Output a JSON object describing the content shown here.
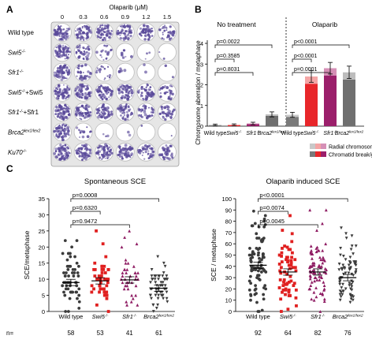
{
  "panels": {
    "A": "A",
    "B": "B",
    "C": "C"
  },
  "panel_a": {
    "dose_title": "Olaparib (μM)",
    "doses": [
      "0",
      "0.3",
      "0.6",
      "0.9",
      "1.2",
      "1.5"
    ],
    "rows": [
      {
        "label": "Wild type",
        "wells": [
          1.0,
          0.95,
          0.9,
          0.85,
          0.75,
          0.55
        ]
      },
      {
        "label": "Swi5⁻/⁻",
        "wells": [
          1.0,
          0.55,
          0.3,
          0.1,
          0.05,
          0.03
        ]
      },
      {
        "label": "Sfr1⁻/⁻",
        "wells": [
          1.0,
          0.5,
          0.25,
          0.08,
          0.04,
          0.03
        ]
      },
      {
        "label": "Swi5⁻/⁻+Swi5",
        "wells": [
          1.0,
          0.95,
          0.9,
          0.8,
          0.7,
          0.5
        ]
      },
      {
        "label": "Sfr1⁻/⁻+Sfr1",
        "wells": [
          1.0,
          0.95,
          0.85,
          0.75,
          0.65,
          0.5
        ]
      },
      {
        "label": "Brca2lex1/lex2",
        "wells": [
          1.0,
          0.2,
          0.05,
          0.03,
          0.02,
          0.02
        ]
      },
      {
        "label": "Ku70⁻/⁻",
        "wells": [
          1.0,
          0.95,
          0.9,
          0.8,
          0.7,
          0.6
        ]
      }
    ]
  },
  "chart_data": [
    {
      "id": "B",
      "type": "bar",
      "ylabel": "Chromosome aberration / metaphase",
      "ylim": [
        0,
        4
      ],
      "yticks": [
        "0",
        "1",
        "2",
        "3",
        "4"
      ],
      "group_titles": [
        "No treatment",
        "Olaparib"
      ],
      "categories": [
        "Wild type",
        "Swi5⁻/⁻",
        "Sfr1⁻/⁻",
        "Brca2lex1/lex2"
      ],
      "groups": [
        {
          "name": "No treatment",
          "break_gap": [
            0.05,
            0.05,
            0.1,
            0.5
          ],
          "radial": [
            0.01,
            0.02,
            0.03,
            0.07
          ],
          "err": [
            0.04,
            0.04,
            0.06,
            0.12
          ]
        },
        {
          "name": "Olaparib",
          "break_gap": [
            0.45,
            2.05,
            2.45,
            2.25
          ],
          "radial": [
            0.1,
            0.35,
            0.35,
            0.35
          ],
          "err": [
            0.12,
            0.28,
            0.28,
            0.3
          ]
        }
      ],
      "legend": [
        "Radial chromosome",
        "Chromatid break/gap"
      ],
      "pvalues_left": [
        "p=0.0022",
        "p=0.3585",
        "p=0.8031"
      ],
      "pvalues_right": [
        "p<0.0001",
        "p<0.0001",
        "p=0.0001"
      ]
    },
    {
      "id": "C-left",
      "type": "scatter",
      "title": "Spontaneous SCE",
      "ylabel": "SCE/metaphase",
      "ylim": [
        0,
        35
      ],
      "yticks": [
        "0",
        "5",
        "10",
        "15",
        "20",
        "25",
        "30",
        "35"
      ],
      "categories": [
        "Wild type",
        "Swi5⁻/⁻",
        "Sfr1⁻/⁻",
        "Brca2lex1/lex2"
      ],
      "means": [
        9.0,
        9.5,
        9.8,
        7.2
      ],
      "n": [
        "58",
        "53",
        "41",
        "61"
      ],
      "n_label": "n=",
      "pvalues": [
        "p=0.0008",
        "p=0.6320",
        "p=0.9472"
      ]
    },
    {
      "id": "C-right",
      "type": "scatter",
      "title": "Olaparib induced SCE",
      "ylabel": "SCE / metaphase",
      "ylim": [
        0,
        100
      ],
      "yticks": [
        "0",
        "10",
        "20",
        "30",
        "40",
        "50",
        "60",
        "70",
        "80",
        "90",
        "100"
      ],
      "categories": [
        "Wild type",
        "Swi5⁻/⁻",
        "Sfr1⁻/⁻",
        "Brca2lex1/lex2"
      ],
      "means": [
        41,
        35,
        35,
        30
      ],
      "n": [
        "92",
        "64",
        "82",
        "76"
      ],
      "pvalues": [
        "p<0.0001",
        "p=0.0074",
        "p=0.0045"
      ]
    }
  ],
  "colors": {
    "wt_break": "#7a7a7a",
    "wt_radial": "#c8c8c8",
    "swi5_break": "#e8262a",
    "swi5_radial": "#f4a5a5",
    "sfr1_break": "#9b1f6b",
    "sfr1_radial": "#d58fb6",
    "brca2_break": "#6f6f6f",
    "brca2_radial": "#bdbdbd",
    "wt_dot": "#3b3b3b",
    "swi5_dot": "#e02020",
    "sfr1_dot": "#8e1b62",
    "brca2_dot": "#3b3b3b",
    "plate": "#ffffff",
    "well_edge": "#bdbdbd",
    "stain": "#5a4a9a"
  }
}
